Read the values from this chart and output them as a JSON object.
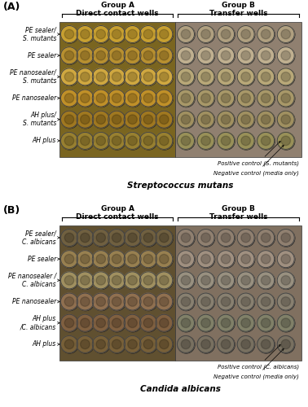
{
  "panel_A": {
    "label": "(A)",
    "group_A_title": "Group A\nDirect contact wells",
    "group_B_title": "Group B\nTransfer wells",
    "row_labels": [
      "PE sealer/\nS. mutants",
      "PE sealer",
      "PE nanosealer/\nS. mutants",
      "PE nanosealer",
      "AH plus/\nS. mutants",
      "AH plus"
    ],
    "positive_control": "Positive control (S. mutants)",
    "negative_control": "Negative control (media only)",
    "subtitle": "Streptococcus mutans",
    "bg_photo_left": "#7a6520",
    "bg_photo_right": "#908070",
    "well_colors_left": [
      "#c8a030",
      "#b89030",
      "#d0a840",
      "#c09028",
      "#a07820",
      "#988030"
    ],
    "well_colors_right": [
      "#b0a080",
      "#c0b090",
      "#b8a878",
      "#a89868",
      "#a09060",
      "#989058"
    ]
  },
  "panel_B": {
    "label": "(B)",
    "group_A_title": "Group A\nDirect contact wells",
    "group_B_title": "Group B\nTransfer wells",
    "row_labels": [
      "PE sealer/\nC. albicans",
      "PE sealer",
      "PE nanosealer /\nC. albicans",
      "PE nanosealer",
      "AH plus\n/C. albicans",
      "AH plus"
    ],
    "positive_control": "Positive control (C. albicans)",
    "negative_control": "Negative control (media only)",
    "subtitle": "Candida albicans",
    "bg_photo_left": "#605030",
    "bg_photo_right": "#807060",
    "well_colors_left": [
      "#706040",
      "#988050",
      "#a09060",
      "#907050",
      "#806040",
      "#786038"
    ],
    "well_colors_right": [
      "#908070",
      "#a09080",
      "#989080",
      "#888070",
      "#808068",
      "#787060"
    ]
  },
  "bg_color": "#ffffff",
  "text_color": "#000000",
  "font_size_label": 8,
  "font_size_row": 5.5,
  "font_size_subtitle": 7.5,
  "font_size_group": 6.5,
  "font_size_control": 5
}
